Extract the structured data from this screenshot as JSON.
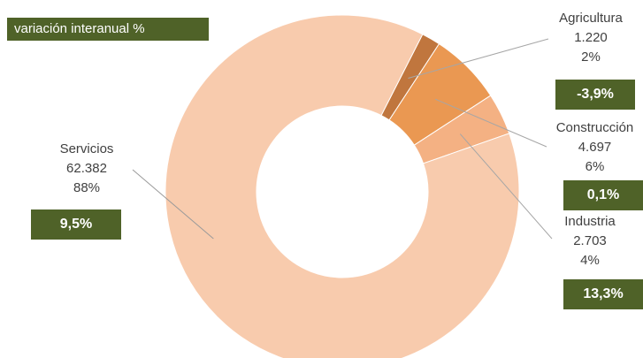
{
  "legend_label": "variación interanual %",
  "chart_data": {
    "type": "pie",
    "variant": "donut",
    "slices": [
      {
        "label": "Agricultura",
        "value_text": "1.220",
        "value": 1220,
        "percent_text": "2%",
        "change": "-3,9%",
        "color": "#c0763e"
      },
      {
        "label": "Construcción",
        "value_text": "4.697",
        "value": 4697,
        "percent_text": "6%",
        "change": "0,1%",
        "color": "#ea9852"
      },
      {
        "label": "Industria",
        "value_text": "2.703",
        "value": 2703,
        "percent_text": "4%",
        "change": "13,3%",
        "color": "#f4b183"
      },
      {
        "label": "Servicios",
        "value_text": "62.382",
        "value": 62382,
        "percent_text": "88%",
        "change": "9,5%",
        "color": "#f8cbad"
      }
    ],
    "start_angle_deg": 27
  }
}
